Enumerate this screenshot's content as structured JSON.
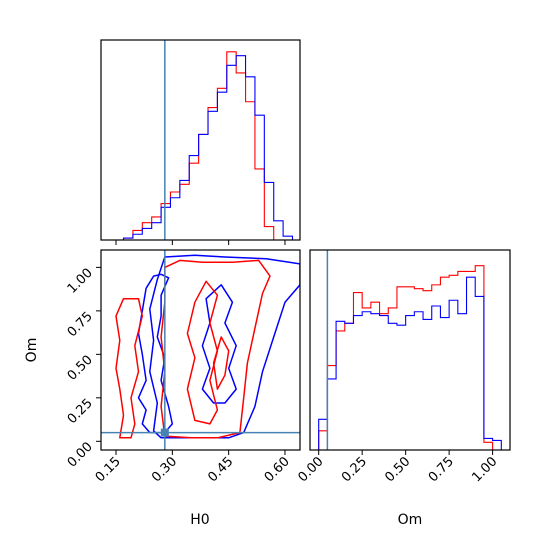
{
  "chart_data": {
    "type": "corner",
    "parameters": [
      "H0",
      "Om"
    ],
    "colors": {
      "series_a": "#ff0000",
      "series_b": "#0000ff",
      "truth": "#4682b4"
    },
    "truth": {
      "H0": 0.28,
      "Om": 0.05
    },
    "axis_ranges": {
      "H0": [
        0.11,
        0.64
      ],
      "Om": [
        -0.05,
        1.1
      ]
    },
    "ticks": {
      "H0": {
        "values": [
          0.15,
          0.3,
          0.45,
          0.6
        ],
        "labels": [
          "0.15",
          "0.30",
          "0.45",
          "0.60"
        ]
      },
      "Om": {
        "values": [
          0.0,
          0.25,
          0.5,
          0.75,
          1.0
        ],
        "labels": [
          "0.00",
          "0.25",
          "0.50",
          "0.75",
          "1.00"
        ]
      }
    },
    "xlabels": {
      "H0": "H0",
      "Om": "Om"
    },
    "ylabel_2d": "Om",
    "hist_H0": {
      "bin_width": 0.025,
      "series": [
        {
          "values": [
            [
              0.17,
              0.01
            ],
            [
              0.195,
              0.05
            ],
            [
              0.22,
              0.09
            ],
            [
              0.245,
              0.12
            ],
            [
              0.27,
              0.19
            ],
            [
              0.295,
              0.25
            ],
            [
              0.32,
              0.29
            ],
            [
              0.345,
              0.4
            ],
            [
              0.37,
              0.55
            ],
            [
              0.395,
              0.69
            ],
            [
              0.42,
              0.79
            ],
            [
              0.445,
              0.98
            ],
            [
              0.47,
              0.87
            ],
            [
              0.495,
              0.72
            ],
            [
              0.52,
              0.37
            ],
            [
              0.545,
              0.07
            ],
            [
              0.57,
              0.0
            ]
          ]
        },
        {
          "values": [
            [
              0.17,
              0.01
            ],
            [
              0.195,
              0.03
            ],
            [
              0.22,
              0.06
            ],
            [
              0.245,
              0.09
            ],
            [
              0.27,
              0.17
            ],
            [
              0.295,
              0.22
            ],
            [
              0.32,
              0.31
            ],
            [
              0.345,
              0.44
            ],
            [
              0.37,
              0.55
            ],
            [
              0.395,
              0.67
            ],
            [
              0.42,
              0.77
            ],
            [
              0.445,
              0.91
            ],
            [
              0.47,
              0.96
            ],
            [
              0.495,
              0.85
            ],
            [
              0.52,
              0.65
            ],
            [
              0.545,
              0.3
            ],
            [
              0.57,
              0.1
            ],
            [
              0.595,
              0.02
            ]
          ]
        }
      ]
    },
    "hist_Om": {
      "bin_width": 0.05,
      "series": [
        {
          "values": [
            [
              0.0,
              0.1
            ],
            [
              0.05,
              0.44
            ],
            [
              0.1,
              0.62
            ],
            [
              0.15,
              0.66
            ],
            [
              0.2,
              0.82
            ],
            [
              0.25,
              0.74
            ],
            [
              0.3,
              0.77
            ],
            [
              0.35,
              0.71
            ],
            [
              0.4,
              0.74
            ],
            [
              0.45,
              0.85
            ],
            [
              0.5,
              0.85
            ],
            [
              0.55,
              0.84
            ],
            [
              0.6,
              0.83
            ],
            [
              0.65,
              0.86
            ],
            [
              0.7,
              0.9
            ],
            [
              0.75,
              0.91
            ],
            [
              0.8,
              0.93
            ],
            [
              0.85,
              0.93
            ],
            [
              0.9,
              0.96
            ],
            [
              0.95,
              0.04
            ]
          ]
        },
        {
          "values": [
            [
              0.0,
              0.16
            ],
            [
              0.05,
              0.37
            ],
            [
              0.1,
              0.67
            ],
            [
              0.15,
              0.66
            ],
            [
              0.2,
              0.7
            ],
            [
              0.25,
              0.72
            ],
            [
              0.3,
              0.71
            ],
            [
              0.35,
              0.7
            ],
            [
              0.4,
              0.66
            ],
            [
              0.45,
              0.65
            ],
            [
              0.5,
              0.7
            ],
            [
              0.55,
              0.72
            ],
            [
              0.6,
              0.68
            ],
            [
              0.65,
              0.75
            ],
            [
              0.7,
              0.69
            ],
            [
              0.75,
              0.78
            ],
            [
              0.8,
              0.71
            ],
            [
              0.85,
              0.9
            ],
            [
              0.9,
              0.8
            ],
            [
              0.95,
              0.06
            ],
            [
              1.0,
              0.05
            ]
          ]
        }
      ]
    },
    "contours": [
      {
        "series": 1,
        "points": [
          [
            0.24,
            0.05
          ],
          [
            0.22,
            0.1
          ],
          [
            0.23,
            0.18
          ],
          [
            0.21,
            0.25
          ],
          [
            0.23,
            0.35
          ],
          [
            0.22,
            0.5
          ],
          [
            0.21,
            0.62
          ],
          [
            0.22,
            0.75
          ],
          [
            0.23,
            0.88
          ],
          [
            0.25,
            0.95
          ],
          [
            0.27,
            0.96
          ],
          [
            0.29,
            0.94
          ],
          [
            0.27,
            0.84
          ],
          [
            0.27,
            0.72
          ],
          [
            0.26,
            0.6
          ],
          [
            0.28,
            0.48
          ],
          [
            0.27,
            0.35
          ],
          [
            0.29,
            0.2
          ],
          [
            0.3,
            0.1
          ],
          [
            0.28,
            0.05
          ]
        ]
      },
      {
        "series": 1,
        "points": [
          [
            0.27,
            0.02
          ],
          [
            0.25,
            0.06
          ],
          [
            0.26,
            0.22
          ],
          [
            0.24,
            0.4
          ],
          [
            0.25,
            0.58
          ],
          [
            0.24,
            0.76
          ],
          [
            0.26,
            0.93
          ],
          [
            0.28,
            1.06
          ],
          [
            0.36,
            1.07
          ],
          [
            0.44,
            1.06
          ],
          [
            0.55,
            1.05
          ],
          [
            0.64,
            1.02
          ],
          [
            0.64,
            0.9
          ],
          [
            0.6,
            0.8
          ],
          [
            0.57,
            0.6
          ],
          [
            0.54,
            0.4
          ],
          [
            0.52,
            0.2
          ],
          [
            0.49,
            0.05
          ],
          [
            0.45,
            0.02
          ],
          [
            0.38,
            0.02
          ]
        ]
      },
      {
        "series": 1,
        "points": [
          [
            0.41,
            0.22
          ],
          [
            0.38,
            0.3
          ],
          [
            0.4,
            0.42
          ],
          [
            0.38,
            0.55
          ],
          [
            0.4,
            0.68
          ],
          [
            0.39,
            0.82
          ],
          [
            0.43,
            0.9
          ],
          [
            0.46,
            0.8
          ],
          [
            0.44,
            0.68
          ],
          [
            0.47,
            0.55
          ],
          [
            0.45,
            0.42
          ],
          [
            0.47,
            0.3
          ],
          [
            0.44,
            0.22
          ]
        ]
      },
      {
        "series": 0,
        "points": [
          [
            0.16,
            0.02
          ],
          [
            0.17,
            0.15
          ],
          [
            0.16,
            0.3
          ],
          [
            0.15,
            0.42
          ],
          [
            0.16,
            0.58
          ],
          [
            0.15,
            0.72
          ],
          [
            0.17,
            0.82
          ],
          [
            0.21,
            0.82
          ],
          [
            0.22,
            0.72
          ],
          [
            0.2,
            0.55
          ],
          [
            0.21,
            0.4
          ],
          [
            0.19,
            0.25
          ],
          [
            0.2,
            0.1
          ],
          [
            0.19,
            0.02
          ]
        ]
      },
      {
        "series": 0,
        "points": [
          [
            0.28,
            0.03
          ],
          [
            0.27,
            0.2
          ],
          [
            0.28,
            0.4
          ],
          [
            0.27,
            0.6
          ],
          [
            0.28,
            0.8
          ],
          [
            0.28,
            1.0
          ],
          [
            0.32,
            1.04
          ],
          [
            0.38,
            1.03
          ],
          [
            0.46,
            1.03
          ],
          [
            0.53,
            1.04
          ],
          [
            0.56,
            0.95
          ],
          [
            0.54,
            0.85
          ],
          [
            0.52,
            0.65
          ],
          [
            0.5,
            0.45
          ],
          [
            0.49,
            0.25
          ],
          [
            0.48,
            0.05
          ],
          [
            0.42,
            0.02
          ],
          [
            0.35,
            0.02
          ]
        ]
      },
      {
        "series": 0,
        "points": [
          [
            0.36,
            0.12
          ],
          [
            0.34,
            0.3
          ],
          [
            0.36,
            0.48
          ],
          [
            0.34,
            0.62
          ],
          [
            0.36,
            0.8
          ],
          [
            0.39,
            0.92
          ],
          [
            0.42,
            0.84
          ],
          [
            0.4,
            0.68
          ],
          [
            0.42,
            0.52
          ],
          [
            0.4,
            0.35
          ],
          [
            0.42,
            0.18
          ],
          [
            0.4,
            0.1
          ]
        ]
      },
      {
        "series": 0,
        "points": [
          [
            0.42,
            0.3
          ],
          [
            0.41,
            0.45
          ],
          [
            0.43,
            0.6
          ],
          [
            0.45,
            0.52
          ],
          [
            0.44,
            0.38
          ]
        ]
      }
    ]
  }
}
